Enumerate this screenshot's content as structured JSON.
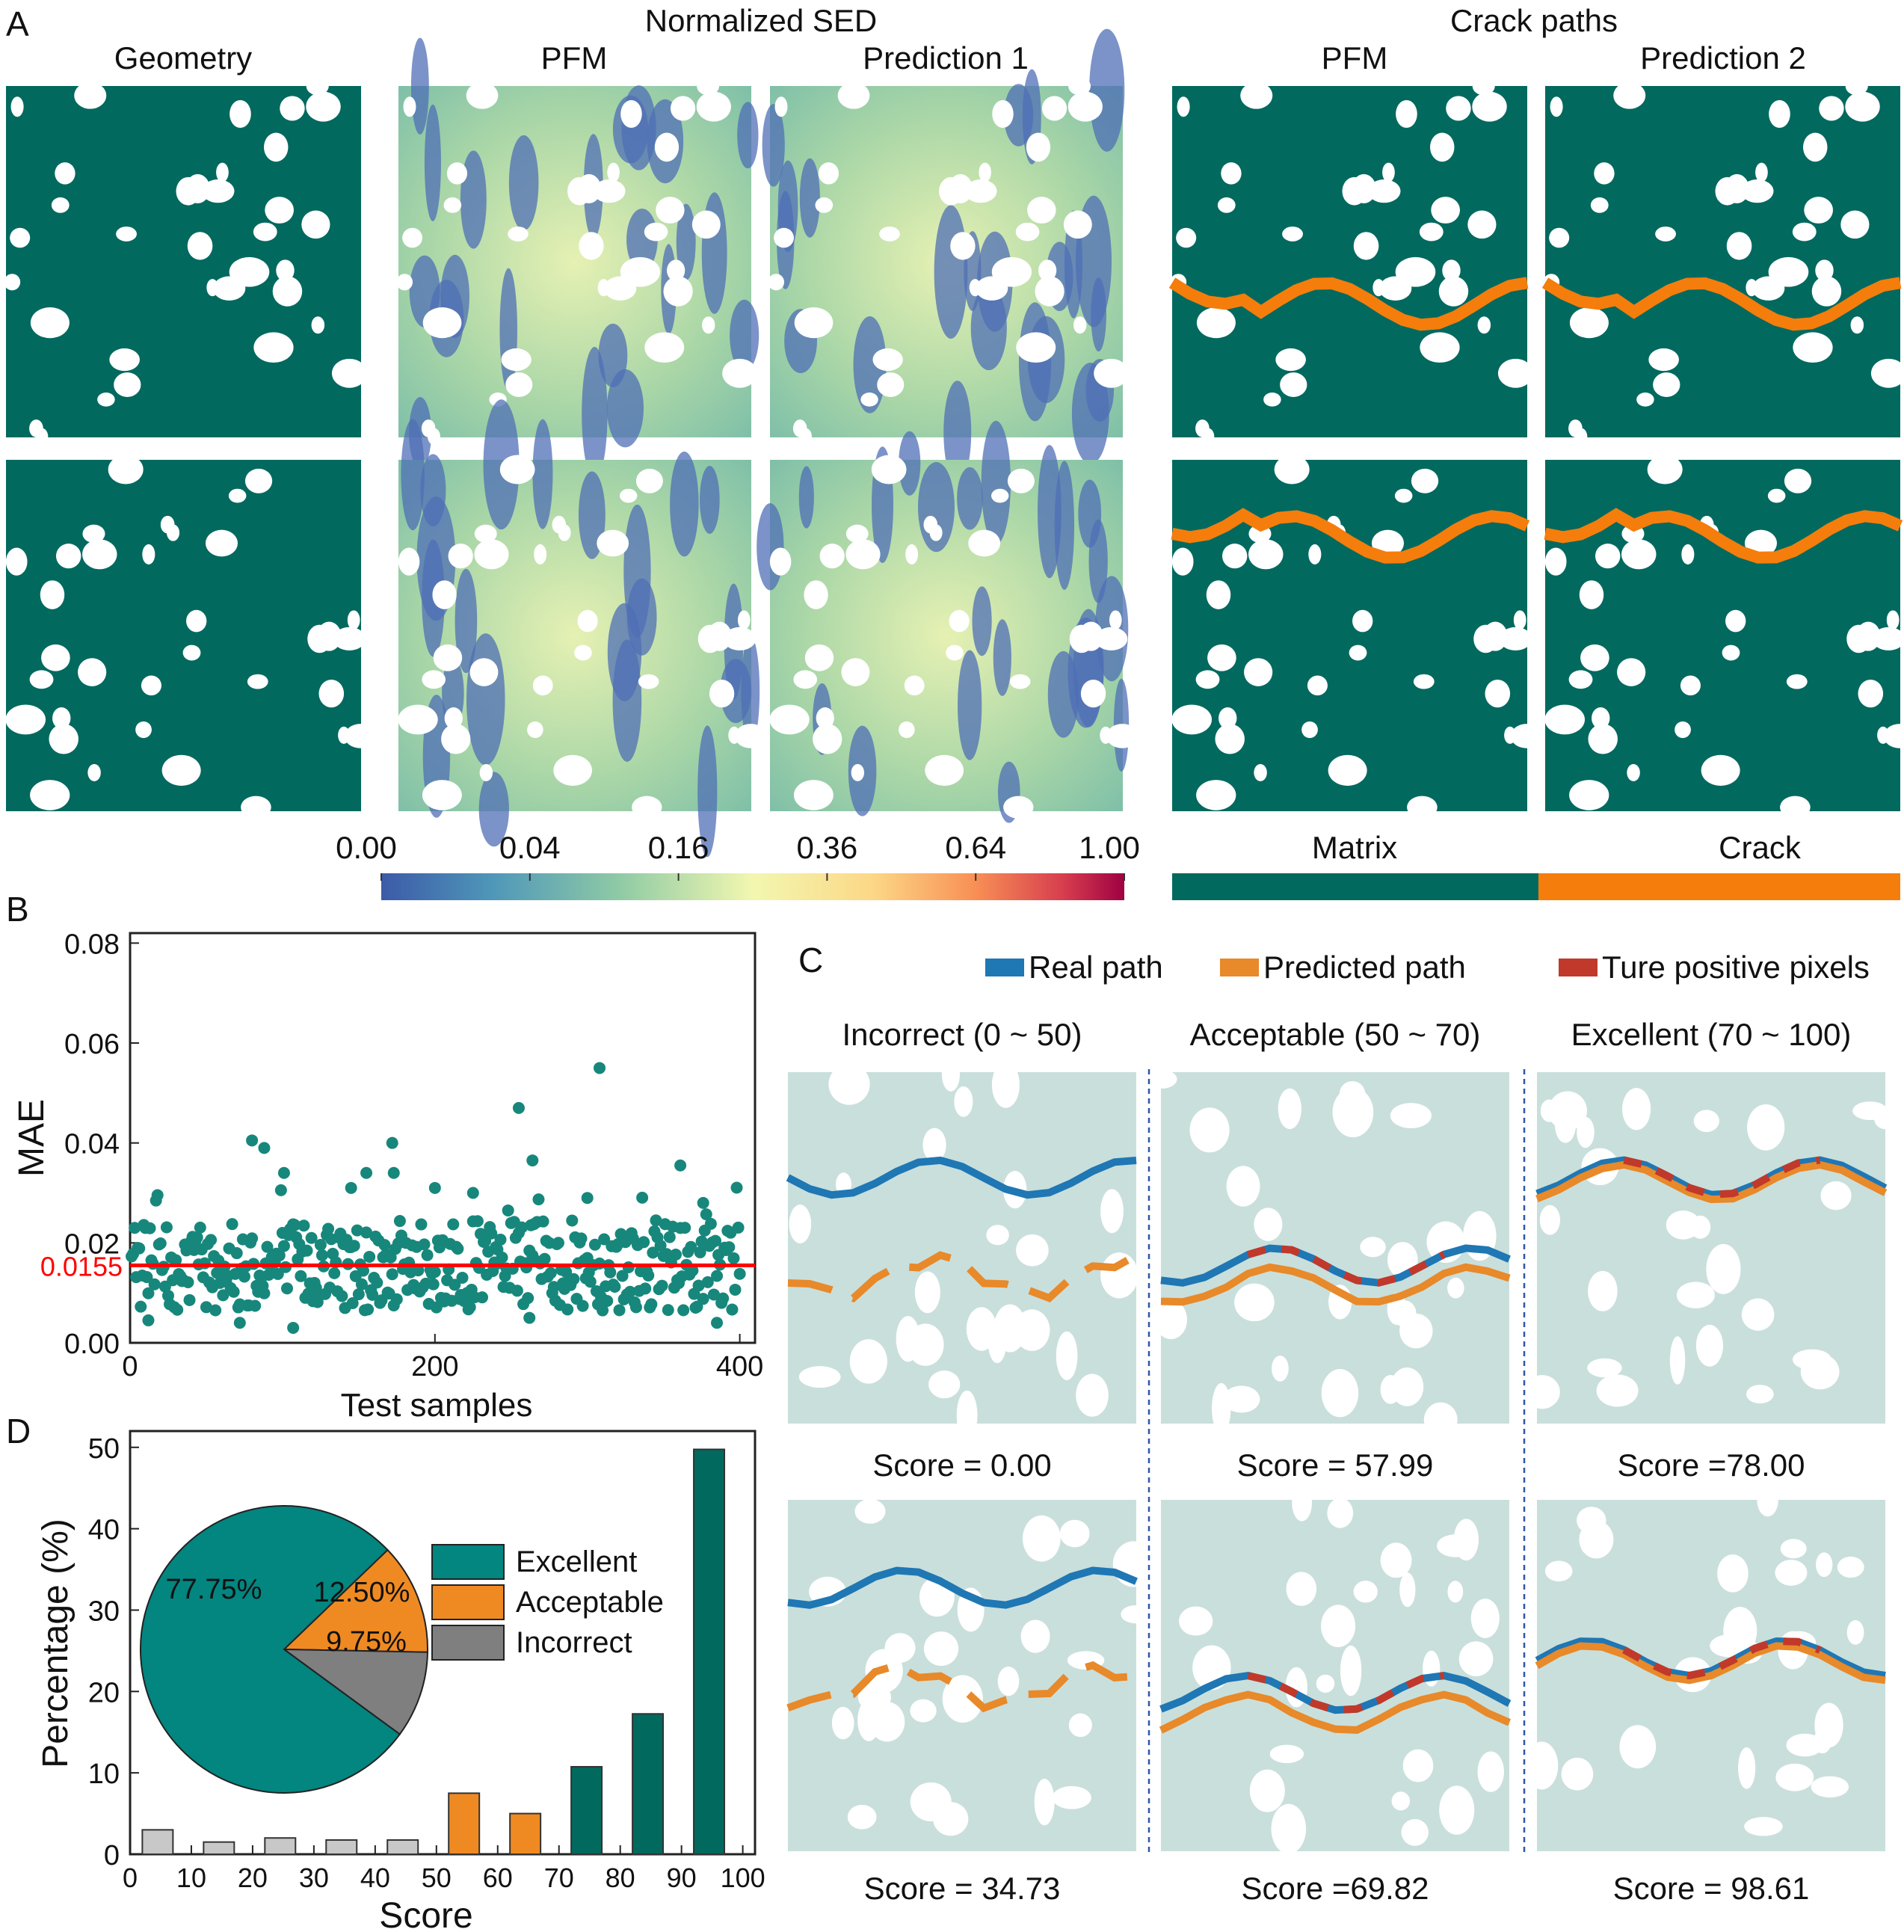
{
  "panelA": {
    "letter": "A",
    "group_titles": {
      "sed": "Normalized SED",
      "crack": "Crack paths"
    },
    "col_titles": [
      "Geometry",
      "PFM",
      "Prediction 1",
      "PFM",
      "Prediction 2"
    ],
    "colorbar_ticks": [
      "0.00",
      "0.04",
      "0.16",
      "0.36",
      "0.64",
      "1.00"
    ],
    "legend": {
      "matrix": "Matrix",
      "crack": "Crack"
    },
    "colors": {
      "matrix": "#02695f",
      "crack": "#f57d0c"
    }
  },
  "panelB": {
    "letter": "B"
  },
  "panelC": {
    "letter": "C",
    "legend": [
      "Real path",
      "Predicted path",
      "Ture positive pixels"
    ],
    "legend_colors": [
      "#1f77b4",
      "#e8892a",
      "#c0392b"
    ],
    "col_titles": [
      "Incorrect (0 ~ 50)",
      "Acceptable (50 ~ 70)",
      "Excellent (70 ~ 100)"
    ],
    "scores_row1": [
      "Score = 0.00",
      "Score = 57.99",
      "Score =78.00"
    ],
    "scores_row2": [
      "Score = 34.73",
      "Score =69.82",
      "Score = 98.61"
    ]
  },
  "panelD": {
    "letter": "D"
  },
  "chart_data": [
    {
      "type": "scatter",
      "panel": "B",
      "xlabel": "Test samples",
      "ylabel": "MAE",
      "xlim": [
        0,
        410
      ],
      "ylim": [
        0,
        0.082
      ],
      "xticks": [
        "0",
        "200",
        "400"
      ],
      "yticks": [
        "0.00",
        "0.02",
        "0.04",
        "0.06",
        "0.08"
      ],
      "reference_line": {
        "value": 0.0155,
        "label": "0.0155",
        "color": "#ff0000"
      },
      "marker_color": "#17877c",
      "n_points": 400,
      "highlighted_points": [
        {
          "x": 80,
          "y": 0.0405
        },
        {
          "x": 88,
          "y": 0.039
        },
        {
          "x": 101,
          "y": 0.034
        },
        {
          "x": 155,
          "y": 0.034
        },
        {
          "x": 145,
          "y": 0.031
        },
        {
          "x": 172,
          "y": 0.04
        },
        {
          "x": 173,
          "y": 0.034
        },
        {
          "x": 255,
          "y": 0.047
        },
        {
          "x": 264,
          "y": 0.0365
        },
        {
          "x": 308,
          "y": 0.055
        },
        {
          "x": 361,
          "y": 0.0355
        },
        {
          "x": 200,
          "y": 0.031
        },
        {
          "x": 225,
          "y": 0.03
        },
        {
          "x": 300,
          "y": 0.029
        },
        {
          "x": 376,
          "y": 0.028
        },
        {
          "x": 12,
          "y": 0.0045
        },
        {
          "x": 72,
          "y": 0.004
        },
        {
          "x": 107,
          "y": 0.003
        },
        {
          "x": 262,
          "y": 0.005
        },
        {
          "x": 385,
          "y": 0.004
        }
      ]
    },
    {
      "type": "bar",
      "panel": "D",
      "xlabel": "Score",
      "ylabel": "Percentage (%)",
      "xlim": [
        0,
        102
      ],
      "ylim": [
        0,
        52
      ],
      "xticks": [
        "0",
        "10",
        "20",
        "30",
        "40",
        "50",
        "60",
        "70",
        "80",
        "90",
        "100"
      ],
      "yticks": [
        "0",
        "10",
        "20",
        "30",
        "40",
        "50"
      ],
      "categories": [
        "0-10",
        "10-20",
        "20-30",
        "30-40",
        "40-50",
        "50-60",
        "60-70",
        "70-80",
        "80-90",
        "90-100"
      ],
      "values": [
        3.0,
        1.5,
        2.0,
        1.75,
        1.75,
        7.5,
        5.0,
        10.75,
        17.25,
        49.75
      ],
      "bar_colors": [
        "#c8c8c8",
        "#c8c8c8",
        "#c8c8c8",
        "#c8c8c8",
        "#c8c8c8",
        "#ef8a22",
        "#ef8a22",
        "#02695f",
        "#02695f",
        "#02695f"
      ]
    },
    {
      "type": "pie",
      "panel": "D-inset",
      "labels": [
        "Excellent",
        "Acceptable",
        "Incorrect"
      ],
      "values": [
        77.75,
        12.5,
        9.75
      ],
      "value_labels": [
        "77.75%",
        "12.50%",
        "9.75%"
      ],
      "colors": [
        "#038580",
        "#ef8a22",
        "#7f7f7f"
      ]
    }
  ]
}
